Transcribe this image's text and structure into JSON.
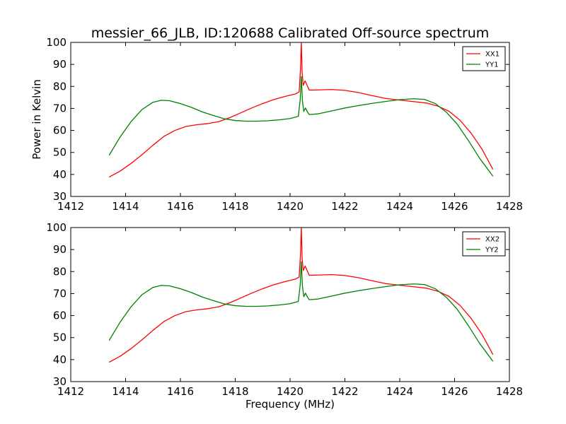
{
  "title": "messier_66_JLB, ID:120688 Calibrated Off-source spectrum",
  "xlabel": "Frequency (MHz)",
  "ylabel": "Power in Kelvin",
  "colors": {
    "xx": "#ff0000",
    "yy": "#008000"
  },
  "chart_data": [
    {
      "type": "line",
      "xlim": [
        1412,
        1428
      ],
      "ylim": [
        30,
        100
      ],
      "xticks": [
        "1412",
        "1414",
        "1416",
        "1418",
        "1420",
        "1422",
        "1424",
        "1426",
        "1428"
      ],
      "yticks": [
        "30",
        "40",
        "50",
        "60",
        "70",
        "80",
        "90",
        "100"
      ],
      "legend": "top-right",
      "series": [
        {
          "name": "XX1",
          "color": "#ff0000",
          "points": [
            [
              1413.4,
              38.8
            ],
            [
              1413.8,
              41.5
            ],
            [
              1414.2,
              45.0
            ],
            [
              1414.6,
              49.0
            ],
            [
              1415.0,
              53.3
            ],
            [
              1415.4,
              57.3
            ],
            [
              1415.8,
              60.0
            ],
            [
              1416.2,
              61.8
            ],
            [
              1416.6,
              62.6
            ],
            [
              1417.0,
              63.1
            ],
            [
              1417.4,
              64.0
            ],
            [
              1417.8,
              65.8
            ],
            [
              1418.2,
              68.0
            ],
            [
              1418.6,
              70.2
            ],
            [
              1419.0,
              72.2
            ],
            [
              1419.4,
              74.0
            ],
            [
              1419.8,
              75.4
            ],
            [
              1420.2,
              76.6
            ],
            [
              1420.33,
              77.5
            ],
            [
              1420.38,
              88.0
            ],
            [
              1420.41,
              100.0
            ],
            [
              1420.44,
              86.0
            ],
            [
              1420.48,
              80.5
            ],
            [
              1420.55,
              82.5
            ],
            [
              1420.62,
              80.5
            ],
            [
              1420.7,
              78.3
            ],
            [
              1421.0,
              78.4
            ],
            [
              1421.5,
              78.6
            ],
            [
              1422.0,
              78.2
            ],
            [
              1422.5,
              77.2
            ],
            [
              1423.0,
              75.8
            ],
            [
              1423.5,
              74.5
            ],
            [
              1424.0,
              73.8
            ],
            [
              1424.5,
              73.1
            ],
            [
              1425.0,
              72.4
            ],
            [
              1425.4,
              71.0
            ],
            [
              1425.8,
              68.7
            ],
            [
              1426.2,
              64.6
            ],
            [
              1426.6,
              58.8
            ],
            [
              1427.0,
              51.5
            ],
            [
              1427.4,
              42.3
            ]
          ]
        },
        {
          "name": "YY1",
          "color": "#008000",
          "points": [
            [
              1413.4,
              48.7
            ],
            [
              1413.8,
              57.0
            ],
            [
              1414.2,
              64.0
            ],
            [
              1414.6,
              69.5
            ],
            [
              1415.0,
              72.8
            ],
            [
              1415.3,
              73.7
            ],
            [
              1415.6,
              73.5
            ],
            [
              1416.0,
              72.2
            ],
            [
              1416.4,
              70.5
            ],
            [
              1416.8,
              68.4
            ],
            [
              1417.2,
              66.8
            ],
            [
              1417.6,
              65.3
            ],
            [
              1418.0,
              64.5
            ],
            [
              1418.4,
              64.2
            ],
            [
              1418.8,
              64.2
            ],
            [
              1419.2,
              64.4
            ],
            [
              1419.6,
              64.8
            ],
            [
              1420.0,
              65.4
            ],
            [
              1420.3,
              66.4
            ],
            [
              1420.37,
              74.0
            ],
            [
              1420.41,
              84.5
            ],
            [
              1420.45,
              73.5
            ],
            [
              1420.5,
              68.6
            ],
            [
              1420.56,
              70.2
            ],
            [
              1420.63,
              68.5
            ],
            [
              1420.7,
              67.2
            ],
            [
              1421.0,
              67.5
            ],
            [
              1421.5,
              68.8
            ],
            [
              1422.0,
              70.2
            ],
            [
              1422.5,
              71.3
            ],
            [
              1423.0,
              72.3
            ],
            [
              1423.5,
              73.2
            ],
            [
              1424.0,
              74.0
            ],
            [
              1424.5,
              74.4
            ],
            [
              1424.9,
              74.1
            ],
            [
              1425.3,
              72.2
            ],
            [
              1425.7,
              68.3
            ],
            [
              1426.1,
              62.8
            ],
            [
              1426.5,
              55.5
            ],
            [
              1426.9,
              47.6
            ],
            [
              1427.4,
              39.2
            ]
          ]
        }
      ]
    },
    {
      "type": "line",
      "xlim": [
        1412,
        1428
      ],
      "ylim": [
        30,
        100
      ],
      "xticks": [
        "1412",
        "1414",
        "1416",
        "1418",
        "1420",
        "1422",
        "1424",
        "1426",
        "1428"
      ],
      "yticks": [
        "30",
        "40",
        "50",
        "60",
        "70",
        "80",
        "90",
        "100"
      ],
      "legend": "top-right",
      "series": [
        {
          "name": "XX2",
          "color": "#ff0000",
          "points": [
            [
              1413.4,
              38.8
            ],
            [
              1413.8,
              41.5
            ],
            [
              1414.2,
              45.0
            ],
            [
              1414.6,
              49.0
            ],
            [
              1415.0,
              53.3
            ],
            [
              1415.4,
              57.3
            ],
            [
              1415.8,
              60.0
            ],
            [
              1416.2,
              61.8
            ],
            [
              1416.6,
              62.6
            ],
            [
              1417.0,
              63.1
            ],
            [
              1417.4,
              64.0
            ],
            [
              1417.8,
              65.8
            ],
            [
              1418.2,
              68.0
            ],
            [
              1418.6,
              70.2
            ],
            [
              1419.0,
              72.2
            ],
            [
              1419.4,
              74.0
            ],
            [
              1419.8,
              75.4
            ],
            [
              1420.2,
              76.6
            ],
            [
              1420.33,
              77.5
            ],
            [
              1420.38,
              88.0
            ],
            [
              1420.41,
              100.0
            ],
            [
              1420.44,
              86.0
            ],
            [
              1420.48,
              80.5
            ],
            [
              1420.55,
              82.5
            ],
            [
              1420.62,
              80.5
            ],
            [
              1420.7,
              78.3
            ],
            [
              1421.0,
              78.4
            ],
            [
              1421.5,
              78.6
            ],
            [
              1422.0,
              78.2
            ],
            [
              1422.5,
              77.2
            ],
            [
              1423.0,
              75.8
            ],
            [
              1423.5,
              74.5
            ],
            [
              1424.0,
              73.8
            ],
            [
              1424.5,
              73.1
            ],
            [
              1425.0,
              72.4
            ],
            [
              1425.4,
              71.0
            ],
            [
              1425.8,
              68.7
            ],
            [
              1426.2,
              64.6
            ],
            [
              1426.6,
              58.8
            ],
            [
              1427.0,
              51.5
            ],
            [
              1427.4,
              42.3
            ]
          ]
        },
        {
          "name": "YY2",
          "color": "#008000",
          "points": [
            [
              1413.4,
              48.7
            ],
            [
              1413.8,
              57.0
            ],
            [
              1414.2,
              64.0
            ],
            [
              1414.6,
              69.5
            ],
            [
              1415.0,
              72.8
            ],
            [
              1415.3,
              73.7
            ],
            [
              1415.6,
              73.5
            ],
            [
              1416.0,
              72.2
            ],
            [
              1416.4,
              70.5
            ],
            [
              1416.8,
              68.4
            ],
            [
              1417.2,
              66.8
            ],
            [
              1417.6,
              65.3
            ],
            [
              1418.0,
              64.5
            ],
            [
              1418.4,
              64.2
            ],
            [
              1418.8,
              64.2
            ],
            [
              1419.2,
              64.4
            ],
            [
              1419.6,
              64.8
            ],
            [
              1420.0,
              65.4
            ],
            [
              1420.3,
              66.4
            ],
            [
              1420.37,
              74.0
            ],
            [
              1420.41,
              84.5
            ],
            [
              1420.45,
              73.5
            ],
            [
              1420.5,
              68.6
            ],
            [
              1420.56,
              70.2
            ],
            [
              1420.63,
              68.5
            ],
            [
              1420.7,
              67.2
            ],
            [
              1421.0,
              67.5
            ],
            [
              1421.5,
              68.8
            ],
            [
              1422.0,
              70.2
            ],
            [
              1422.5,
              71.3
            ],
            [
              1423.0,
              72.3
            ],
            [
              1423.5,
              73.2
            ],
            [
              1424.0,
              74.0
            ],
            [
              1424.5,
              74.4
            ],
            [
              1424.9,
              74.1
            ],
            [
              1425.3,
              72.2
            ],
            [
              1425.7,
              68.3
            ],
            [
              1426.1,
              62.8
            ],
            [
              1426.5,
              55.5
            ],
            [
              1426.9,
              47.6
            ],
            [
              1427.4,
              39.2
            ]
          ]
        }
      ]
    }
  ]
}
